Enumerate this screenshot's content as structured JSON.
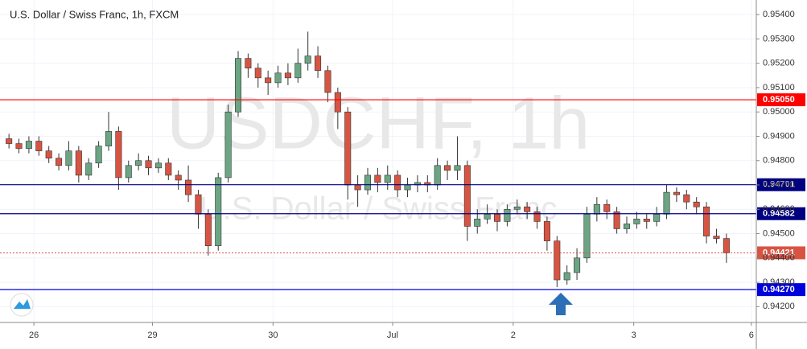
{
  "chart_data": {
    "type": "candlestick",
    "title": "U.S. Dollar / Swiss Franc, 1h, FXCM",
    "watermark": "USDCHF, 1h",
    "watermark_subtitle": "U.S. Dollar / Swiss Franc",
    "up_color": "#6ba583",
    "down_color": "#d75442",
    "wick_color": "#333333",
    "open": [
      0.9489,
      0.9487,
      0.9485,
      0.9488,
      0.9484,
      0.9481,
      0.9478,
      0.9484,
      0.9474,
      0.9479,
      0.9486,
      0.9492,
      0.9473,
      0.9478,
      0.948,
      0.9477,
      0.9479,
      0.9474,
      0.9472,
      0.9466,
      0.9458,
      0.9445,
      0.9473,
      0.95,
      0.9522,
      0.9518,
      0.9514,
      0.9512,
      0.9516,
      0.9514,
      0.952,
      0.9523,
      0.9517,
      0.9508,
      0.95,
      0.947,
      0.9468,
      0.9474,
      0.9471,
      0.9474,
      0.9468,
      0.947,
      0.9471,
      0.947,
      0.9478,
      0.9476,
      0.9478,
      0.9453,
      0.9456,
      0.9458,
      0.9455,
      0.946,
      0.9461,
      0.9459,
      0.9455,
      0.9447,
      0.9431,
      0.9434,
      0.944,
      0.9458,
      0.9462,
      0.9459,
      0.9452,
      0.9454,
      0.9456,
      0.9455,
      0.9458,
      0.9467,
      0.9466,
      0.9463,
      0.9461,
      0.9449,
      0.9448
    ],
    "high": [
      0.9491,
      0.9489,
      0.949,
      0.949,
      0.9486,
      0.9483,
      0.9488,
      0.9486,
      0.9481,
      0.9488,
      0.95,
      0.9494,
      0.948,
      0.9483,
      0.9482,
      0.9481,
      0.9481,
      0.9476,
      0.9478,
      0.9468,
      0.946,
      0.9475,
      0.9503,
      0.9525,
      0.9524,
      0.952,
      0.9517,
      0.9519,
      0.952,
      0.9526,
      0.9533,
      0.9527,
      0.9519,
      0.951,
      0.9502,
      0.9474,
      0.9477,
      0.9477,
      0.9478,
      0.9476,
      0.9473,
      0.9474,
      0.9474,
      0.9481,
      0.948,
      0.949,
      0.948,
      0.946,
      0.9462,
      0.946,
      0.9462,
      0.9464,
      0.9463,
      0.9461,
      0.9457,
      0.9449,
      0.9437,
      0.9444,
      0.9461,
      0.9465,
      0.9464,
      0.9461,
      0.9457,
      0.9459,
      0.9458,
      0.9461,
      0.947,
      0.9469,
      0.9468,
      0.9465,
      0.9463,
      0.9452,
      0.945
    ],
    "low": [
      0.9485,
      0.9483,
      0.9483,
      0.9482,
      0.9479,
      0.9476,
      0.9476,
      0.9471,
      0.9472,
      0.9477,
      0.9484,
      0.9468,
      0.9471,
      0.9476,
      0.9474,
      0.9475,
      0.9472,
      0.9468,
      0.9463,
      0.9452,
      0.9441,
      0.9443,
      0.9471,
      0.9498,
      0.9514,
      0.951,
      0.9507,
      0.951,
      0.9511,
      0.9512,
      0.9517,
      0.9514,
      0.9504,
      0.9493,
      0.9464,
      0.9461,
      0.9466,
      0.9467,
      0.9468,
      0.9465,
      0.9465,
      0.9467,
      0.9467,
      0.9468,
      0.9472,
      0.9472,
      0.9447,
      0.945,
      0.9454,
      0.9451,
      0.9453,
      0.9458,
      0.9456,
      0.9452,
      0.9443,
      0.9428,
      0.9429,
      0.9431,
      0.9438,
      0.9455,
      0.9456,
      0.945,
      0.945,
      0.9452,
      0.9452,
      0.9453,
      0.9456,
      0.9463,
      0.946,
      0.9458,
      0.9446,
      0.9446,
      0.9438
    ],
    "close": [
      0.9487,
      0.9485,
      0.9488,
      0.9484,
      0.9481,
      0.9478,
      0.9484,
      0.9474,
      0.9479,
      0.9486,
      0.9492,
      0.9473,
      0.9478,
      0.948,
      0.9477,
      0.9479,
      0.9474,
      0.9472,
      0.9466,
      0.9458,
      0.9445,
      0.9473,
      0.95,
      0.9522,
      0.9518,
      0.9514,
      0.9512,
      0.9516,
      0.9514,
      0.952,
      0.9523,
      0.9517,
      0.9508,
      0.95,
      0.947,
      0.9468,
      0.9474,
      0.9471,
      0.9474,
      0.9468,
      0.947,
      0.9471,
      0.947,
      0.9478,
      0.9476,
      0.9478,
      0.9453,
      0.9456,
      0.9458,
      0.9455,
      0.946,
      0.9461,
      0.9459,
      0.9455,
      0.9447,
      0.9431,
      0.9434,
      0.944,
      0.9458,
      0.9462,
      0.9459,
      0.9452,
      0.9454,
      0.9456,
      0.9455,
      0.9458,
      0.9467,
      0.9466,
      0.9463,
      0.9461,
      0.9449,
      0.9448,
      0.94421
    ],
    "xlim": [
      -0.9,
      75.0
    ],
    "xticks": [
      {
        "value": 2.5,
        "label": "26"
      },
      {
        "value": 14.4,
        "label": "29"
      },
      {
        "value": 26.5,
        "label": "30"
      },
      {
        "value": 38.5,
        "label": "Jul"
      },
      {
        "value": 50.6,
        "label": "2"
      },
      {
        "value": 62.7,
        "label": "3"
      },
      {
        "value": 74.5,
        "label": "6"
      }
    ],
    "ylim": [
      0.94135,
      0.9546
    ],
    "yticks": [
      {
        "value": 0.942,
        "label": "0.94200"
      },
      {
        "value": 0.943,
        "label": "0.94300"
      },
      {
        "value": 0.944,
        "label": "0.94400"
      },
      {
        "value": 0.945,
        "label": "0.94500"
      },
      {
        "value": 0.946,
        "label": "0.94600"
      },
      {
        "value": 0.947,
        "label": "0.94700"
      },
      {
        "value": 0.948,
        "label": "0.94800"
      },
      {
        "value": 0.949,
        "label": "0.94900"
      },
      {
        "value": 0.95,
        "label": "0.95000"
      },
      {
        "value": 0.951,
        "label": "0.95100"
      },
      {
        "value": 0.952,
        "label": "0.95200"
      },
      {
        "value": 0.953,
        "label": "0.95300"
      },
      {
        "value": 0.954,
        "label": "0.95400"
      }
    ],
    "levels": [
      {
        "value": 0.9505,
        "label": "0.95050",
        "color": "#ff0000",
        "style": "solid"
      },
      {
        "value": 0.94701,
        "color": "#000080",
        "style": "solid"
      },
      {
        "value": 0.94582,
        "color": "#000080",
        "style": "solid"
      },
      {
        "value": 0.94421,
        "color": "#d75442",
        "style": "dotted"
      },
      {
        "value": 0.9427,
        "label": "0.94270",
        "color": "#0000dd",
        "style": "solid"
      }
    ]
  }
}
